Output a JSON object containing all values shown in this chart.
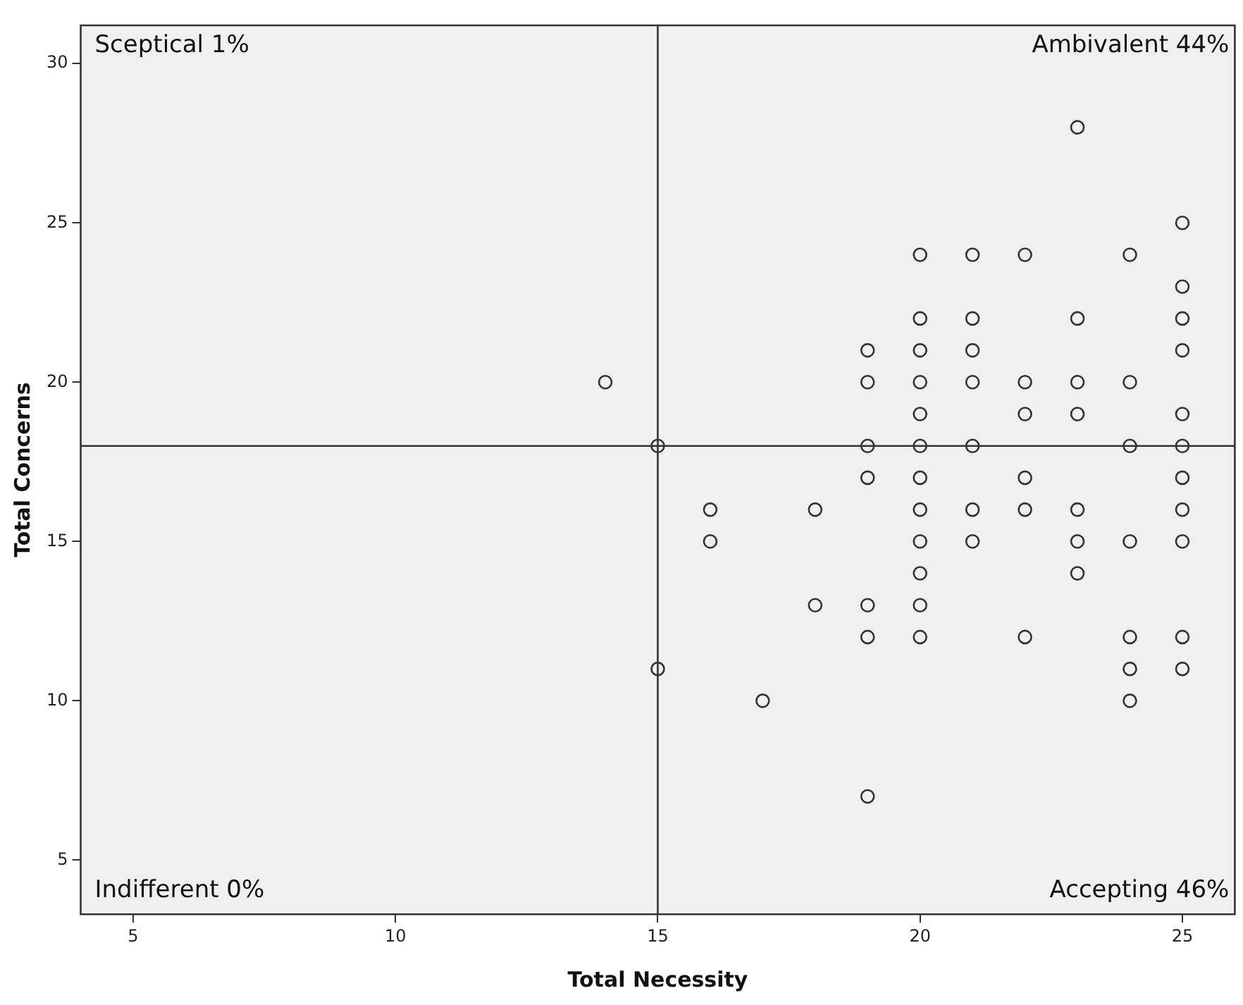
{
  "chart_data": {
    "type": "scatter",
    "xlabel": "Total Necessity",
    "ylabel": "Total Concerns",
    "x": [
      14,
      15,
      15,
      16,
      16,
      17,
      18,
      18,
      19,
      19,
      19,
      19,
      19,
      19,
      19,
      20,
      20,
      20,
      20,
      20,
      20,
      20,
      20,
      20,
      20,
      20,
      20,
      21,
      21,
      21,
      21,
      21,
      21,
      21,
      22,
      22,
      22,
      22,
      22,
      22,
      23,
      23,
      23,
      23,
      23,
      23,
      23,
      24,
      24,
      24,
      24,
      24,
      24,
      24,
      25,
      25,
      25,
      25,
      25,
      25,
      25,
      25,
      25,
      25,
      25
    ],
    "series": [
      {
        "color": "#333333",
        "values": [
          20,
          18,
          11,
          16,
          15,
          10,
          16,
          13,
          21,
          20,
          18,
          17,
          13,
          12,
          7,
          24,
          22,
          21,
          20,
          19,
          18,
          17,
          16,
          15,
          14,
          13,
          12,
          24,
          22,
          21,
          20,
          18,
          16,
          15,
          24,
          20,
          19,
          17,
          16,
          12,
          28,
          22,
          20,
          19,
          16,
          15,
          14,
          24,
          20,
          18,
          15,
          12,
          11,
          10,
          25,
          23,
          22,
          21,
          19,
          18,
          17,
          16,
          15,
          12,
          11
        ]
      }
    ],
    "marker": "circle",
    "xlim": [
      4,
      26
    ],
    "ylim": [
      3.3,
      31.2
    ],
    "xticks": [
      5,
      10,
      15,
      20,
      25
    ],
    "yticks": [
      5,
      10,
      15,
      20,
      25,
      30
    ],
    "ref_lines": [
      {
        "axis": "x",
        "value": 15,
        "color": "#333333"
      },
      {
        "axis": "y",
        "value": 18,
        "color": "#333333"
      }
    ],
    "annotations": [
      "Sceptical 1%",
      "Ambivalent 44%",
      "Indifferent 0%",
      "Accepting 46%"
    ]
  }
}
